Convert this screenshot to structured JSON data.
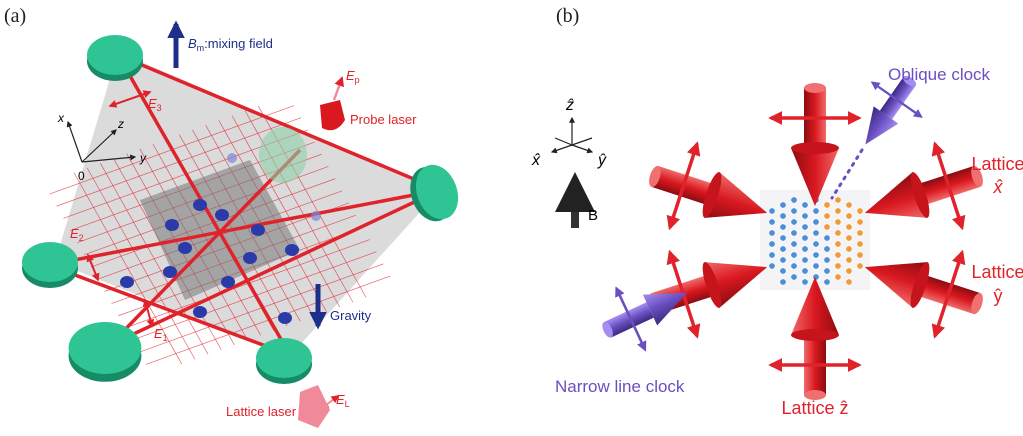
{
  "panel_a": {
    "label": "(a)",
    "mixing_field": {
      "symbol": "B",
      "subscript": "m",
      "text": ":mixing field"
    },
    "probe_field": {
      "symbol": "E",
      "subscript": "p"
    },
    "probe_laser": "Probe laser",
    "axes": {
      "x": "x",
      "y": "y",
      "z": "z",
      "origin": "0"
    },
    "e3": {
      "symbol": "E",
      "subscript": "3"
    },
    "e2": {
      "symbol": "E",
      "subscript": "2"
    },
    "e1": {
      "symbol": "E",
      "subscript": "1"
    },
    "gravity": "Gravity",
    "lattice_field": {
      "symbol": "E",
      "subscript": "L"
    },
    "lattice_laser": "Lattice laser"
  },
  "panel_b": {
    "label": "(b)",
    "axes": {
      "z": "ẑ",
      "x": "x̂",
      "y": "ŷ"
    },
    "field": "B",
    "oblique_clock": "Oblique clock",
    "lattice_x": [
      "Lattice",
      "x̂"
    ],
    "lattice_y": [
      "Lattice",
      "ŷ"
    ],
    "lattice_z": "Lattice ẑ",
    "narrow_line_clock": "Narrow line clock"
  }
}
